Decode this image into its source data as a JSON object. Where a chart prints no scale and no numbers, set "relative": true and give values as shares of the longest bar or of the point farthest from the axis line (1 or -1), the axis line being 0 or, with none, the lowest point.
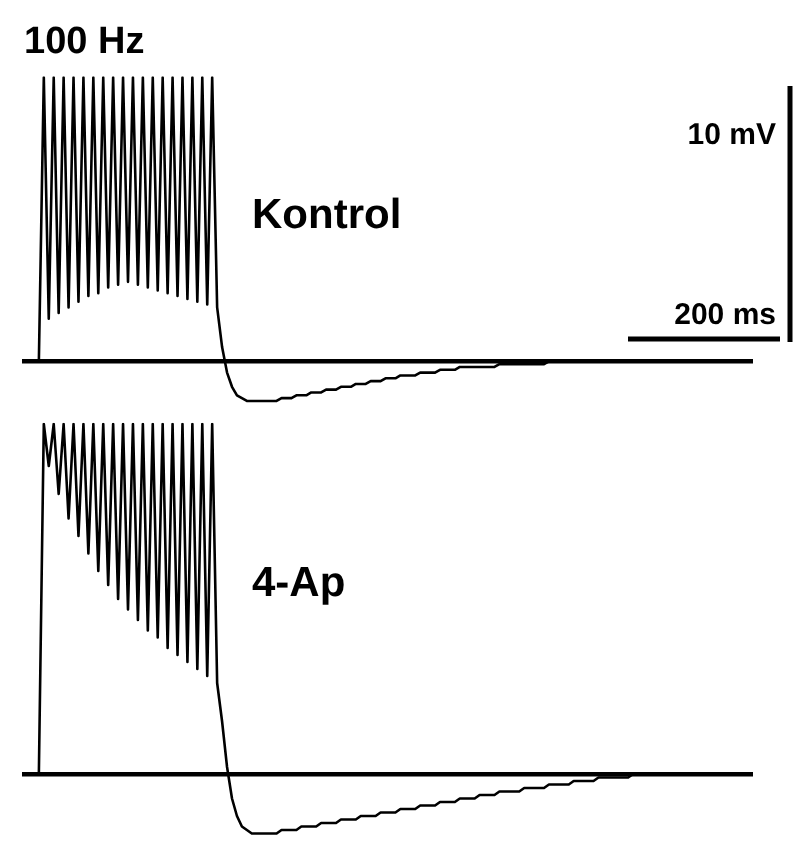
{
  "chart_data": [
    {
      "type": "line",
      "title": "100 Hz",
      "relative": true,
      "grid": false,
      "annotations": [
        "Kontrol",
        "10 mV",
        "200 ms"
      ],
      "categories": [
        null,
        null,
        null,
        null,
        null,
        null,
        null,
        null,
        null,
        null,
        null,
        null,
        null,
        null,
        null,
        null,
        null,
        null,
        null,
        null,
        null,
        null,
        null,
        null,
        null,
        null,
        null,
        null,
        null,
        null,
        null,
        null,
        null,
        null,
        null,
        null,
        null,
        null,
        null,
        null,
        null,
        null,
        null,
        null,
        null,
        null,
        null,
        null,
        null,
        null,
        null,
        null,
        null,
        null,
        null,
        null,
        null,
        null,
        null,
        null,
        null,
        null,
        null,
        null,
        null,
        null,
        null,
        null,
        null,
        null,
        null,
        null,
        null,
        null,
        null,
        null,
        null,
        null,
        null,
        null,
        null,
        null,
        null,
        null,
        null,
        null,
        null,
        null,
        null,
        null,
        null,
        null,
        null,
        null,
        null,
        null,
        null,
        null,
        null,
        null,
        null,
        null,
        null,
        null,
        null,
        null,
        null,
        null,
        null,
        null,
        null,
        null,
        null,
        null,
        null,
        null,
        null,
        null,
        null,
        null,
        null,
        null,
        null,
        null,
        null,
        null,
        null,
        null,
        null,
        null,
        null,
        null,
        null,
        null,
        null,
        null,
        null,
        null,
        null,
        null,
        null,
        null,
        null,
        null,
        null,
        null,
        null,
        null
      ],
      "series": [
        {
          "color": "#000000",
          "values": [
            0,
            0,
            0,
            0,
            1,
            0.15,
            1,
            0.17,
            1,
            0.19,
            1,
            0.21,
            1,
            0.23,
            1,
            0.24,
            1,
            0.26,
            1,
            0.27,
            1,
            0.28,
            1,
            0.27,
            1,
            0.26,
            1,
            0.25,
            1,
            0.24,
            1,
            0.23,
            1,
            0.22,
            1,
            0.21,
            1,
            0.2,
            1,
            0.19,
            0.05,
            -0.04,
            -0.09,
            -0.12,
            -0.13,
            -0.14,
            -0.14,
            -0.14,
            -0.14,
            -0.14,
            -0.14,
            -0.14,
            -0.13,
            -0.13,
            -0.13,
            -0.12,
            -0.12,
            -0.12,
            -0.11,
            -0.11,
            -0.11,
            -0.1,
            -0.1,
            -0.1,
            -0.09,
            -0.09,
            -0.09,
            -0.08,
            -0.08,
            -0.08,
            -0.07,
            -0.07,
            -0.07,
            -0.06,
            -0.06,
            -0.06,
            -0.05,
            -0.05,
            -0.05,
            -0.05,
            -0.04,
            -0.04,
            -0.04,
            -0.04,
            -0.03,
            -0.03,
            -0.03,
            -0.03,
            -0.02,
            -0.02,
            -0.02,
            -0.02,
            -0.02,
            -0.02,
            -0.02,
            -0.02,
            -0.01,
            -0.01,
            -0.01,
            -0.01,
            -0.01,
            -0.01,
            -0.01,
            -0.01,
            -0.01,
            -0.01,
            0,
            0,
            0,
            0,
            0,
            0,
            0,
            0,
            0,
            0,
            0,
            0,
            0,
            0,
            0,
            0,
            0,
            0,
            0,
            0,
            0,
            0,
            0,
            0,
            0,
            0,
            0,
            0,
            0,
            0,
            0,
            0,
            0,
            0,
            0,
            0,
            0,
            0,
            0,
            0,
            0,
            0
          ]
        }
      ]
    },
    {
      "type": "line",
      "relative": true,
      "grid": false,
      "annotations": [
        "4-Ap"
      ],
      "categories": [
        null,
        null,
        null,
        null,
        null,
        null,
        null,
        null,
        null,
        null,
        null,
        null,
        null,
        null,
        null,
        null,
        null,
        null,
        null,
        null,
        null,
        null,
        null,
        null,
        null,
        null,
        null,
        null,
        null,
        null,
        null,
        null,
        null,
        null,
        null,
        null,
        null,
        null,
        null,
        null,
        null,
        null,
        null,
        null,
        null,
        null,
        null,
        null,
        null,
        null,
        null,
        null,
        null,
        null,
        null,
        null,
        null,
        null,
        null,
        null,
        null,
        null,
        null,
        null,
        null,
        null,
        null,
        null,
        null,
        null,
        null,
        null,
        null,
        null,
        null,
        null,
        null,
        null,
        null,
        null,
        null,
        null,
        null,
        null,
        null,
        null,
        null,
        null,
        null,
        null,
        null,
        null,
        null,
        null,
        null,
        null,
        null,
        null,
        null,
        null,
        null,
        null,
        null,
        null,
        null,
        null,
        null,
        null,
        null,
        null,
        null,
        null,
        null,
        null,
        null,
        null,
        null,
        null,
        null,
        null,
        null,
        null,
        null,
        null,
        null,
        null,
        null,
        null,
        null,
        null,
        null,
        null,
        null,
        null,
        null,
        null,
        null,
        null,
        null,
        null,
        null,
        null,
        null,
        null,
        null,
        null,
        null,
        null
      ],
      "series": [
        {
          "color": "#000000",
          "values": [
            0,
            0,
            0,
            0,
            1,
            0.88,
            1,
            0.8,
            1,
            0.73,
            1,
            0.68,
            1,
            0.63,
            1,
            0.58,
            1,
            0.54,
            1,
            0.5,
            1,
            0.47,
            1,
            0.44,
            1,
            0.41,
            1,
            0.39,
            1,
            0.36,
            1,
            0.34,
            1,
            0.32,
            1,
            0.3,
            1,
            0.28,
            1,
            0.26,
            0.15,
            0.02,
            -0.07,
            -0.12,
            -0.15,
            -0.16,
            -0.17,
            -0.17,
            -0.17,
            -0.17,
            -0.17,
            -0.17,
            -0.16,
            -0.16,
            -0.16,
            -0.16,
            -0.15,
            -0.15,
            -0.15,
            -0.15,
            -0.14,
            -0.14,
            -0.14,
            -0.14,
            -0.13,
            -0.13,
            -0.13,
            -0.13,
            -0.12,
            -0.12,
            -0.12,
            -0.12,
            -0.11,
            -0.11,
            -0.11,
            -0.11,
            -0.1,
            -0.1,
            -0.1,
            -0.1,
            -0.09,
            -0.09,
            -0.09,
            -0.09,
            -0.08,
            -0.08,
            -0.08,
            -0.08,
            -0.07,
            -0.07,
            -0.07,
            -0.07,
            -0.06,
            -0.06,
            -0.06,
            -0.06,
            -0.05,
            -0.05,
            -0.05,
            -0.05,
            -0.05,
            -0.04,
            -0.04,
            -0.04,
            -0.04,
            -0.04,
            -0.03,
            -0.03,
            -0.03,
            -0.03,
            -0.03,
            -0.02,
            -0.02,
            -0.02,
            -0.02,
            -0.02,
            -0.01,
            -0.01,
            -0.01,
            -0.01,
            -0.01,
            -0.01,
            -0.01,
            0,
            0,
            0,
            0,
            0,
            0,
            0,
            0,
            0,
            0,
            0,
            0,
            0,
            0,
            0,
            0,
            0,
            0,
            0,
            0,
            0,
            0,
            0,
            0,
            0
          ]
        }
      ]
    }
  ]
}
